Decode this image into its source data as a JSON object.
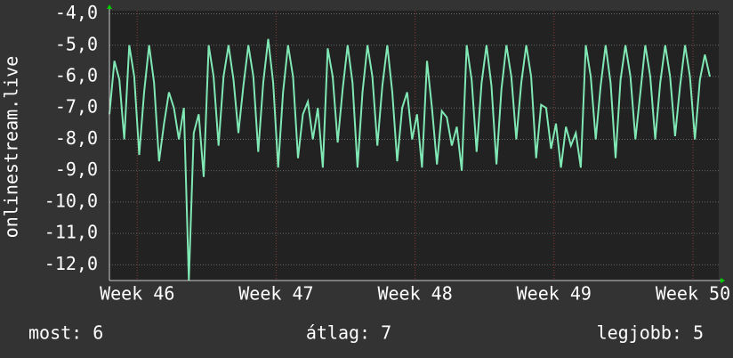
{
  "chart_data": {
    "type": "line",
    "y_label": "onlinestream.live",
    "x": [
      0,
      0.25,
      0.5,
      0.75,
      1,
      1.25,
      1.5,
      1.75,
      2,
      2.25,
      2.5,
      2.75,
      3,
      3.25,
      3.5,
      3.75,
      4,
      4.25,
      4.5,
      4.75,
      5,
      5.25,
      5.5,
      5.75,
      6,
      6.25,
      6.5,
      6.75,
      7,
      7.25,
      7.5,
      7.75,
      8,
      8.25,
      8.5,
      8.75,
      9,
      9.25,
      9.5,
      9.75,
      10,
      10.25,
      10.5,
      10.75,
      11,
      11.25,
      11.5,
      11.75,
      12,
      12.25,
      12.5,
      12.75,
      13,
      13.25,
      13.5,
      13.75,
      14,
      14.25,
      14.5,
      14.75,
      15,
      15.25,
      15.5,
      15.75,
      16,
      16.25,
      16.5,
      16.75,
      17,
      17.25,
      17.5,
      17.75,
      18,
      18.25,
      18.5,
      18.75,
      19,
      19.25,
      19.5,
      19.75,
      20,
      20.25,
      20.5,
      20.75,
      21,
      21.25,
      21.5,
      21.75,
      22,
      22.25,
      22.5,
      22.75,
      23,
      23.25,
      23.5,
      23.75,
      24,
      24.25,
      24.5,
      24.75,
      25,
      25.25,
      25.5,
      25.75,
      26,
      26.25,
      26.5,
      26.75,
      27,
      27.25,
      27.5,
      27.75,
      28,
      28.25,
      28.5,
      28.75,
      29,
      29.25,
      29.5,
      29.75,
      30,
      30.25
    ],
    "series": [
      {
        "name": "onlinestream.live",
        "color": "#80e8b4",
        "values": [
          -7.2,
          -5.5,
          -6.1,
          -8.0,
          -5.0,
          -6.0,
          -8.5,
          -6.5,
          -5.0,
          -6.2,
          -8.7,
          -7.5,
          -6.5,
          -7.0,
          -8.0,
          -7.0,
          -12.5,
          -7.8,
          -7.2,
          -9.2,
          -5.0,
          -6.0,
          -8.2,
          -6.0,
          -5.0,
          -6.1,
          -7.8,
          -6.3,
          -5.0,
          -6.0,
          -8.4,
          -6.2,
          -4.8,
          -6.2,
          -8.9,
          -6.5,
          -5.0,
          -6.0,
          -8.6,
          -7.2,
          -6.8,
          -8.0,
          -7.0,
          -8.9,
          -5.1,
          -6.0,
          -8.1,
          -6.4,
          -5.0,
          -6.2,
          -8.9,
          -6.5,
          -5.0,
          -6.0,
          -8.2,
          -6.3,
          -5.0,
          -6.5,
          -8.7,
          -7.0,
          -6.5,
          -8.0,
          -7.2,
          -8.9,
          -5.5,
          -7.0,
          -8.8,
          -7.1,
          -7.3,
          -8.2,
          -7.6,
          -9.0,
          -5.0,
          -6.1,
          -8.4,
          -6.2,
          -5.0,
          -6.3,
          -8.8,
          -6.4,
          -5.0,
          -6.0,
          -8.0,
          -6.2,
          -5.0,
          -6.0,
          -8.6,
          -6.9,
          -7.0,
          -8.3,
          -7.5,
          -8.9,
          -7.6,
          -8.2,
          -7.8,
          -8.9,
          -5.0,
          -6.0,
          -8.0,
          -6.3,
          -5.0,
          -6.2,
          -8.6,
          -6.1,
          -5.0,
          -6.0,
          -8.0,
          -6.5,
          -5.0,
          -6.0,
          -8.0,
          -6.2,
          -5.0,
          -6.0,
          -7.9,
          -6.3,
          -5.0,
          -6.0,
          -8.0,
          -6.1,
          -5.3,
          -6.0
        ]
      }
    ],
    "xlim": [
      0,
      30.7
    ],
    "xticks": [
      {
        "value": 1.4,
        "label": "Week 46"
      },
      {
        "value": 8.4,
        "label": "Week 47"
      },
      {
        "value": 15.4,
        "label": "Week 48"
      },
      {
        "value": 22.4,
        "label": "Week 49"
      },
      {
        "value": 29.4,
        "label": "Week 50"
      }
    ],
    "ylim": [
      -12.5,
      -3.9
    ],
    "yticks": [
      {
        "value": -12,
        "label": "-12,0"
      },
      {
        "value": -11,
        "label": "-11,0"
      },
      {
        "value": -10,
        "label": "-10,0"
      },
      {
        "value": -9,
        "label": "-9,0"
      },
      {
        "value": -8,
        "label": "-8,0"
      },
      {
        "value": -7,
        "label": "-7,0"
      },
      {
        "value": -6,
        "label": "-6,0"
      },
      {
        "value": -5,
        "label": "-5,0"
      },
      {
        "value": -4,
        "label": "-4,0"
      }
    ],
    "grid": true,
    "footer": [
      "most: 6",
      "átlag: 7",
      "legjobb: 5"
    ]
  }
}
